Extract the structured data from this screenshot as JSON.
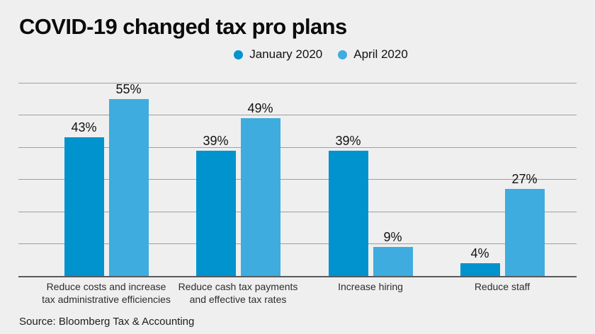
{
  "title": "COVID-19 changed tax pro plans",
  "source": "Source: Bloomberg Tax & Accounting",
  "colors": {
    "background": "#efeff0",
    "january": "#0093ce",
    "april": "#3eacde",
    "gridline": "#9e9f9f",
    "axis": "#595a5c"
  },
  "chart_data": {
    "type": "bar",
    "title": "COVID-19 changed tax pro plans",
    "categories": [
      "Reduce costs and increase tax administrative efficiencies",
      "Reduce cash tax payments and effective tax rates",
      "Increase hiring",
      "Reduce staff"
    ],
    "series": [
      {
        "name": "January 2020",
        "color": "#0093ce",
        "values": [
          43,
          39,
          39,
          4
        ]
      },
      {
        "name": "April 2020",
        "color": "#3eacde",
        "values": [
          55,
          49,
          9,
          27
        ]
      }
    ],
    "value_label_format": "percent",
    "xlabel": "",
    "ylabel": "",
    "ylim": [
      0,
      60
    ],
    "gridline_step": 10,
    "grid": true,
    "y_tick_labels_shown": false,
    "legend_position": "top-center",
    "source": "Source: Bloomberg Tax & Accounting"
  }
}
